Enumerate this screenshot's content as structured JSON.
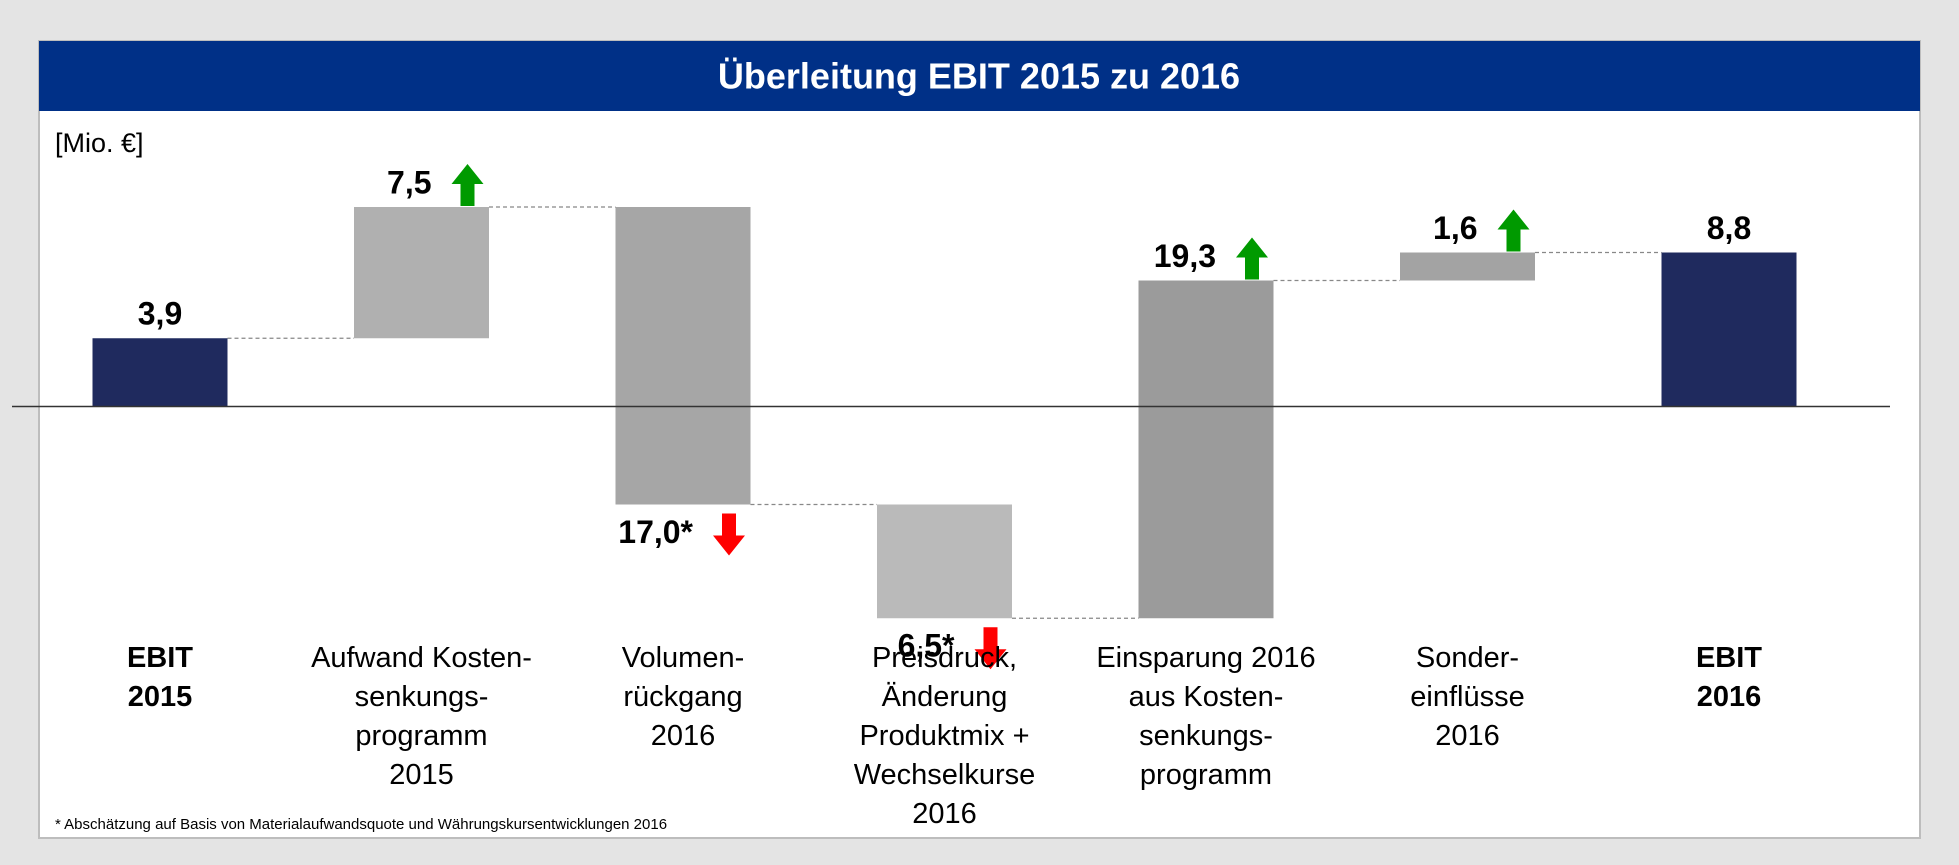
{
  "chart_data": {
    "type": "waterfall",
    "title": "Überleitung EBIT 2015 zu 2016",
    "unit_label": "[Mio. €]",
    "categories": [
      "EBIT\n2015",
      "Aufwand Kosten-\nsenkungs-\nprogramm\n2015",
      "Volumen-\nrückgang\n2016",
      "Preisdruck,\nÄnderung\nProduktmix +\nWechselkurse\n2016",
      "Einsparung 2016\naus Kosten-\nsenkungs-\nprogramm",
      "Sonder-\neinflüsse\n2016",
      "EBIT\n2016"
    ],
    "measure": [
      "absolute",
      "relative",
      "relative",
      "relative",
      "relative",
      "relative",
      "absolute"
    ],
    "values": [
      3.9,
      7.5,
      -17.0,
      -6.5,
      19.3,
      1.6,
      8.8
    ],
    "value_labels": [
      "3,9",
      "7,5",
      "17,0*",
      "6,5*",
      "19,3",
      "1,6",
      "8,8"
    ],
    "colors": [
      "#1f2a5e",
      "#b0b0b0",
      "#a6a6a6",
      "#bababa",
      "#9b9b9b",
      "#a3a3a3",
      "#1f2a5e"
    ],
    "ylim": [
      -15,
      15
    ],
    "footnote": "* Abschätzung auf Basis von Materialaufwandsquote und Währungskursentwicklungen 2016"
  }
}
